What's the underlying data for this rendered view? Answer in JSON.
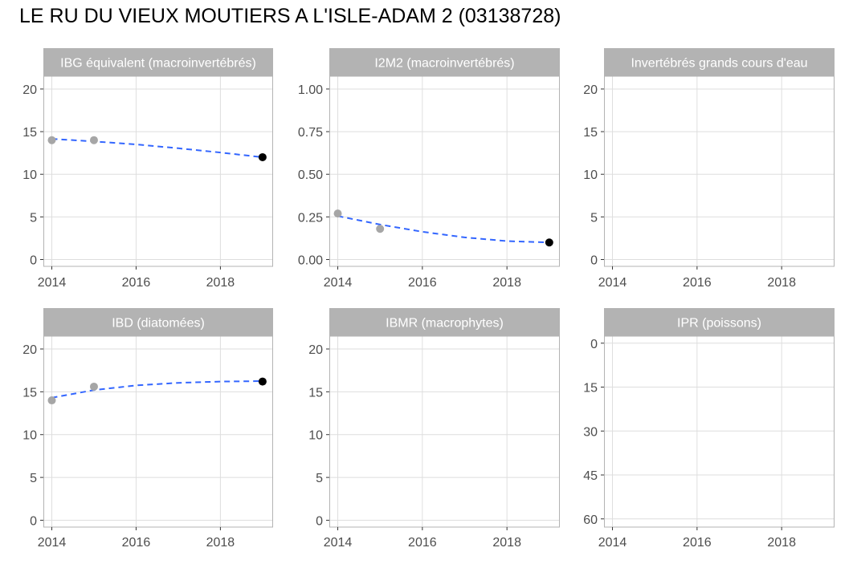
{
  "page_title": "LE RU DU VIEUX MOUTIERS A L'ISLE-ADAM 2 (03138728)",
  "colors": {
    "strip": "#b3b3b3",
    "panel_border": "#b3b3b3",
    "grid": "#dedede",
    "past_point": "#a6a6a6",
    "last_point": "#000000",
    "trend": "#3366ff",
    "tick_text": "#4d4d4d"
  },
  "chart_data": [
    {
      "type": "scatter",
      "title": "IBG équivalent (macroinvertébrés)",
      "x_ticks": [
        2014,
        2016,
        2018
      ],
      "y_ticks": [
        0,
        5,
        10,
        15,
        20
      ],
      "y_tick_labels": [
        "0",
        "5",
        "10",
        "15",
        "20"
      ],
      "xlim": [
        2013.8,
        2019.25
      ],
      "ylim": [
        -0.8,
        21.5
      ],
      "y_reversed": false,
      "grid": true,
      "points": [
        {
          "x": 2014,
          "y": 14,
          "latest": false
        },
        {
          "x": 2015,
          "y": 14,
          "latest": false
        },
        {
          "x": 2019,
          "y": 12,
          "latest": true
        }
      ],
      "trend": [
        {
          "x": 2014,
          "y": 14.15
        },
        {
          "x": 2015,
          "y": 13.85
        },
        {
          "x": 2016,
          "y": 13.5
        },
        {
          "x": 2017,
          "y": 13.05
        },
        {
          "x": 2018,
          "y": 12.55
        },
        {
          "x": 2019,
          "y": 12.0
        }
      ]
    },
    {
      "type": "scatter",
      "title": "I2M2 (macroinvertébrés)",
      "x_ticks": [
        2014,
        2016,
        2018
      ],
      "y_ticks": [
        0,
        0.25,
        0.5,
        0.75,
        1
      ],
      "y_tick_labels": [
        "0.00",
        "0.25",
        "0.50",
        "0.75",
        "1.00"
      ],
      "xlim": [
        2013.8,
        2019.25
      ],
      "ylim": [
        -0.04,
        1.075
      ],
      "y_reversed": false,
      "grid": true,
      "points": [
        {
          "x": 2014,
          "y": 0.27,
          "latest": false
        },
        {
          "x": 2015,
          "y": 0.18,
          "latest": false
        },
        {
          "x": 2019,
          "y": 0.1,
          "latest": true
        }
      ],
      "trend": [
        {
          "x": 2014,
          "y": 0.255
        },
        {
          "x": 2015,
          "y": 0.205
        },
        {
          "x": 2016,
          "y": 0.163
        },
        {
          "x": 2017,
          "y": 0.13
        },
        {
          "x": 2018,
          "y": 0.108
        },
        {
          "x": 2019,
          "y": 0.1
        }
      ]
    },
    {
      "type": "scatter",
      "title": "Invertébrés grands cours d'eau",
      "x_ticks": [
        2014,
        2016,
        2018
      ],
      "y_ticks": [
        0,
        5,
        10,
        15,
        20
      ],
      "y_tick_labels": [
        "0",
        "5",
        "10",
        "15",
        "20"
      ],
      "xlim": [
        2013.8,
        2019.25
      ],
      "ylim": [
        -0.8,
        21.5
      ],
      "y_reversed": false,
      "grid": true,
      "points": [],
      "trend": []
    },
    {
      "type": "scatter",
      "title": "IBD (diatomées)",
      "x_ticks": [
        2014,
        2016,
        2018
      ],
      "y_ticks": [
        0,
        5,
        10,
        15,
        20
      ],
      "y_tick_labels": [
        "0",
        "5",
        "10",
        "15",
        "20"
      ],
      "xlim": [
        2013.8,
        2019.25
      ],
      "ylim": [
        -0.8,
        21.5
      ],
      "y_reversed": false,
      "grid": true,
      "points": [
        {
          "x": 2014,
          "y": 14,
          "latest": false
        },
        {
          "x": 2015,
          "y": 15.6,
          "latest": false
        },
        {
          "x": 2019,
          "y": 16.2,
          "latest": true
        }
      ],
      "trend": [
        {
          "x": 2014,
          "y": 14.3
        },
        {
          "x": 2015,
          "y": 15.2
        },
        {
          "x": 2016,
          "y": 15.75
        },
        {
          "x": 2017,
          "y": 16.05
        },
        {
          "x": 2018,
          "y": 16.2
        },
        {
          "x": 2019,
          "y": 16.25
        }
      ]
    },
    {
      "type": "scatter",
      "title": "IBMR (macrophytes)",
      "x_ticks": [
        2014,
        2016,
        2018
      ],
      "y_ticks": [
        0,
        5,
        10,
        15,
        20
      ],
      "y_tick_labels": [
        "0",
        "5",
        "10",
        "15",
        "20"
      ],
      "xlim": [
        2013.8,
        2019.25
      ],
      "ylim": [
        -0.8,
        21.5
      ],
      "y_reversed": false,
      "grid": true,
      "points": [],
      "trend": []
    },
    {
      "type": "scatter",
      "title": "IPR (poissons)",
      "x_ticks": [
        2014,
        2016,
        2018
      ],
      "y_ticks": [
        0,
        15,
        30,
        45,
        60
      ],
      "y_tick_labels": [
        "0",
        "15",
        "30",
        "45",
        "60"
      ],
      "xlim": [
        2013.8,
        2019.25
      ],
      "ylim": [
        -2.4,
        62.8
      ],
      "y_reversed": true,
      "grid": true,
      "points": [],
      "trend": []
    }
  ]
}
